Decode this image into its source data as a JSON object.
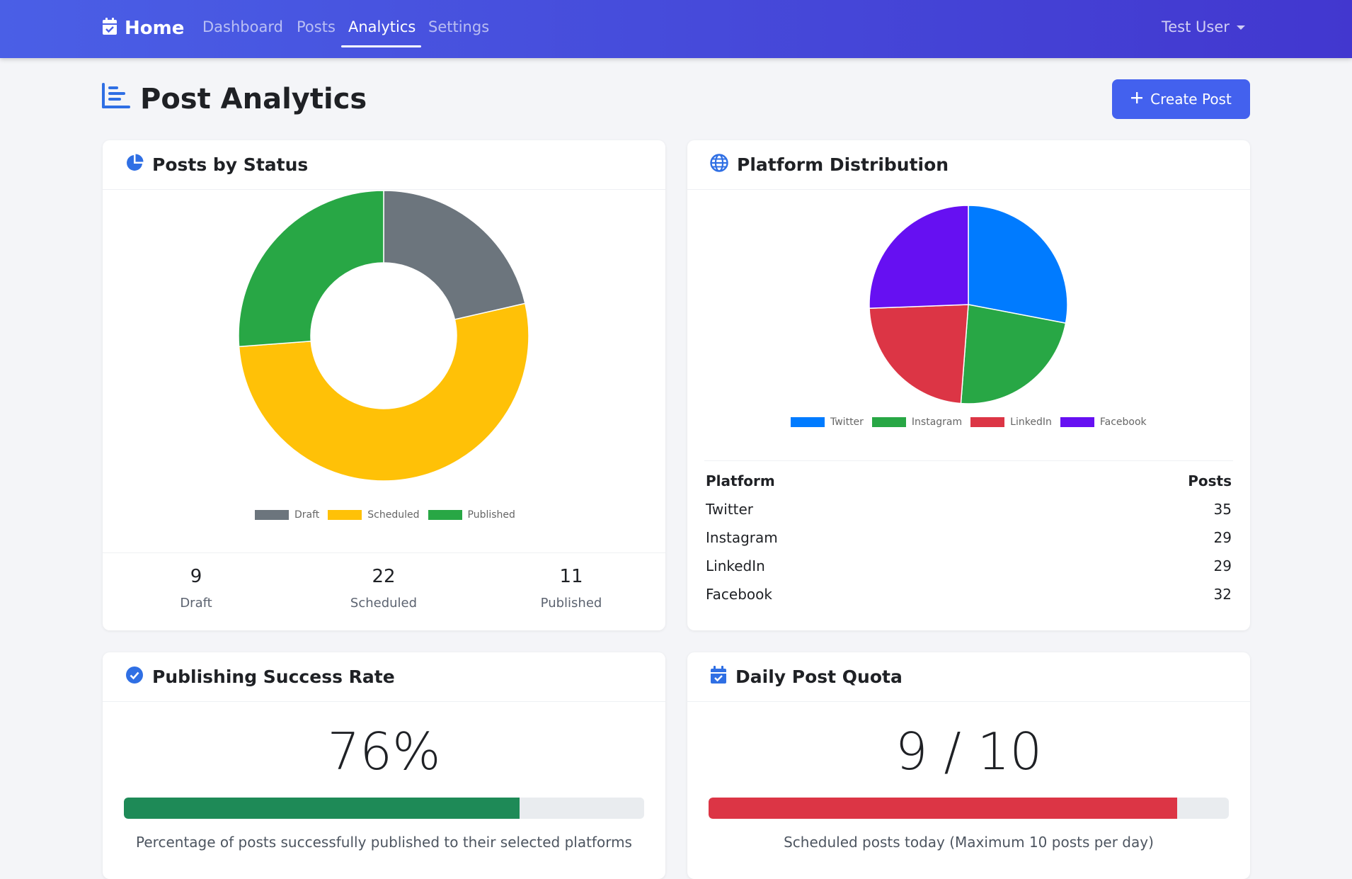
{
  "navbar": {
    "brand": "Home",
    "links": [
      "Dashboard",
      "Posts",
      "Analytics",
      "Settings"
    ],
    "active_link": "Analytics",
    "user": "Test User"
  },
  "header": {
    "title": "Post Analytics",
    "create_button": "Create Post"
  },
  "status_card": {
    "title": "Posts by Status",
    "stats": [
      {
        "value": "9",
        "label": "Draft"
      },
      {
        "value": "22",
        "label": "Scheduled"
      },
      {
        "value": "11",
        "label": "Published"
      }
    ]
  },
  "platform_card": {
    "title": "Platform Distribution",
    "table_header": {
      "platform": "Platform",
      "posts": "Posts"
    },
    "rows": [
      {
        "platform": "Twitter",
        "posts": "35"
      },
      {
        "platform": "Instagram",
        "posts": "29"
      },
      {
        "platform": "LinkedIn",
        "posts": "29"
      },
      {
        "platform": "Facebook",
        "posts": "32"
      }
    ]
  },
  "success_card": {
    "title": "Publishing Success Rate",
    "value": "76%",
    "progress": 0.76,
    "bar_color": "#1e8a57",
    "caption": "Percentage of posts successfully published to their selected platforms"
  },
  "quota_card": {
    "title": "Daily Post Quota",
    "value": "9 / 10",
    "progress": 0.9,
    "bar_color": "#dc3545",
    "caption": "Scheduled posts today (Maximum 10 posts per day)"
  },
  "colors": {
    "accent": "#4361ee",
    "icon_blue": "#2f6fe4"
  },
  "chart_data": [
    {
      "type": "pie",
      "variant": "doughnut",
      "categories": [
        "Draft",
        "Scheduled",
        "Published"
      ],
      "values": [
        9,
        22,
        11
      ],
      "colors": [
        "#6c757d",
        "#ffc107",
        "#28a745"
      ],
      "legend": "bottom"
    },
    {
      "type": "pie",
      "categories": [
        "Twitter",
        "Instagram",
        "LinkedIn",
        "Facebook"
      ],
      "values": [
        35,
        29,
        29,
        32
      ],
      "colors": [
        "#007bff",
        "#28a745",
        "#dc3545",
        "#6610f2"
      ],
      "legend": "bottom"
    }
  ]
}
